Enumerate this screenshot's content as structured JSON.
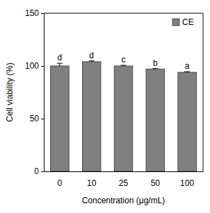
{
  "chart_data": {
    "type": "bar",
    "categories": [
      "0",
      "10",
      "25",
      "50",
      "100"
    ],
    "series": [
      {
        "name": "CE",
        "color": "#808080",
        "values": [
          100,
          104,
          100,
          97,
          94
        ],
        "errors": [
          2.5,
          0.8,
          0.6,
          0.5,
          0.6
        ]
      }
    ],
    "annotations": [
      "d",
      "d",
      "c",
      "b",
      "a"
    ],
    "x_label": "Concentration (μg/mL)",
    "y_label": "Cell viability (%)",
    "ylim": [
      0,
      150
    ],
    "yticks": [
      0,
      50,
      100,
      150
    ],
    "grid": false,
    "legend": "top-right"
  }
}
